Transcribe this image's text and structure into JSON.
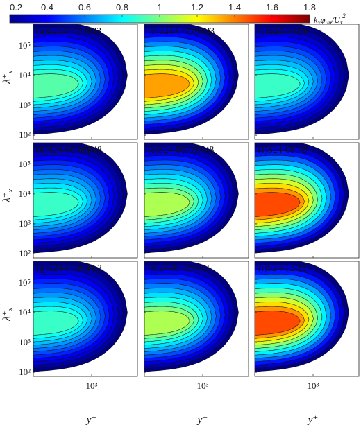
{
  "chart_data": {
    "type": "heatmap",
    "colorbar": {
      "ticks": [
        "0.2",
        "0.4",
        "0.6",
        "0.8",
        "1",
        "1.2",
        "1.4",
        "1.6",
        "1.8"
      ],
      "range": [
        0.2,
        1.8
      ],
      "label": "kxφuu/Uτ²",
      "label_parts": {
        "k": "k",
        "x": "x",
        "phi": "φ",
        "uu": "uu",
        "U": "U",
        "tau": "τ",
        "sq": "2"
      },
      "colormap": "jet"
    },
    "xlabel": "y⁺",
    "ylabel": "λ⁺",
    "ylabel_sub": "x",
    "x_tick_label": "10³",
    "y_tick_labels": [
      "10⁵",
      "10⁴",
      "10³",
      "10²"
    ],
    "y_tick_values": [
      100000,
      10000,
      1000,
      100
    ],
    "scale": {
      "x": "log",
      "y": "log"
    },
    "panels": [
      {
        "label": "(a)S24-07-07P33",
        "peak": 1.0,
        "energetic": "medium",
        "peak_lambda": 10000
      },
      {
        "label": "(b)S24-07-07N33",
        "peak": 1.45,
        "energetic": "high",
        "peak_lambda": 3000
      },
      {
        "label": "(c)S24-06-06",
        "peak": 0.95,
        "energetic": "medium",
        "peak_lambda": 10000
      },
      {
        "label": "(d)S24-06-06P48",
        "peak": 0.95,
        "energetic": "medium",
        "peak_lambda": 10000
      },
      {
        "label": "(e)S24-06-06N48",
        "peak": 1.15,
        "energetic": "medium-high",
        "peak_lambda": 10000
      },
      {
        "label": "(f)S24-08-08",
        "peak": 1.6,
        "energetic": "high near-wall",
        "peak_lambda": 2000
      },
      {
        "label": "(g)S24-05-05P63",
        "peak": 0.95,
        "energetic": "medium",
        "peak_lambda": 10000
      },
      {
        "label": "(h)24-05-05N63",
        "peak": 1.15,
        "energetic": "medium-high",
        "peak_lambda": 8000
      },
      {
        "label": "(i)S24-12-12",
        "peak": 1.6,
        "energetic": "high near-wall",
        "peak_lambda": 1000
      }
    ]
  }
}
